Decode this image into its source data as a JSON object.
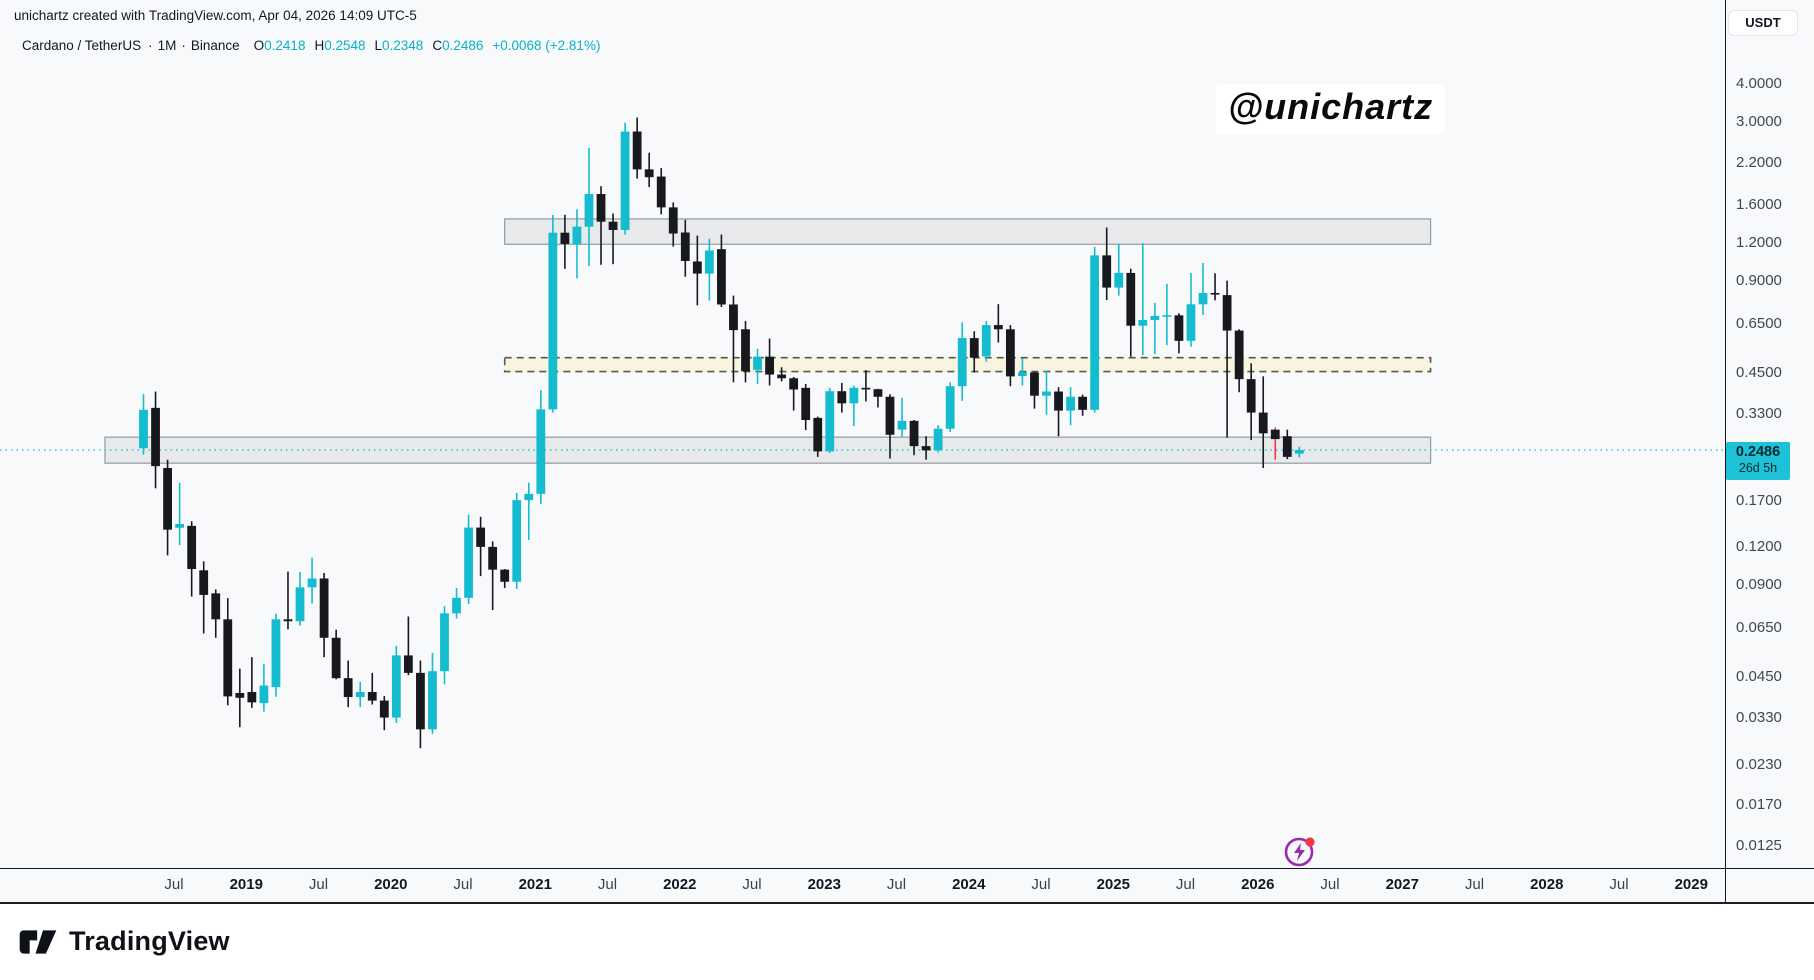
{
  "header": {
    "credit_line": "unichartz created with TradingView.com, Apr 04, 2026 14:09 UTC-5",
    "symbol": "Cardano / TetherUS",
    "separator": "·",
    "interval": "1M",
    "exchange": "Binance",
    "ohlc": {
      "o_label": "O",
      "o": "0.2418",
      "h_label": "H",
      "h": "0.2548",
      "l_label": "L",
      "l": "0.2348",
      "c_label": "C",
      "c": "0.2486",
      "change": "+0.0068 (+2.81%)"
    }
  },
  "watermark": "@unichartz",
  "price_axis": {
    "currency_button": "USDT",
    "ticks": [
      "4.0000",
      "3.0000",
      "2.2000",
      "1.6000",
      "1.2000",
      "0.9000",
      "0.6500",
      "0.4500",
      "0.3300",
      "0.1700",
      "0.1200",
      "0.0900",
      "0.0650",
      "0.0450",
      "0.0330",
      "0.0230",
      "0.0170",
      "0.0125"
    ],
    "last_price": "0.2486",
    "countdown": "26d 5h"
  },
  "time_axis": {
    "labels": [
      "Jul",
      "2019",
      "Jul",
      "2020",
      "Jul",
      "2021",
      "Jul",
      "2022",
      "Jul",
      "2023",
      "Jul",
      "2024",
      "Jul",
      "2025",
      "Jul",
      "2026",
      "Jul",
      "2027",
      "Jul",
      "2028",
      "Jul",
      "2029"
    ]
  },
  "footer": {
    "brand": "TradingView"
  },
  "colors": {
    "up": "#15bccf",
    "down": "#17191e",
    "accent_cyan": "#09b2c8",
    "badge_bg": "#1ec2d6",
    "badge_text": "#0c2b31",
    "zone_gray_fill": "rgba(145,150,157,0.16)",
    "zone_gray_border": "#9599a2",
    "zone_yellow_fill": "rgba(248,241,207,0.62)",
    "zone_yellow_border": "#55584e",
    "price_line": "#27c9dd",
    "purple": "#9c27b0",
    "red": "#f23645"
  },
  "chart_data": {
    "type": "candlestick",
    "title": "Cardano / TetherUS · 1M · Binance",
    "scale": "log",
    "interval": "monthly",
    "current_price": 0.2486,
    "ylim_ticks": [
      4.0,
      0.0125
    ],
    "zones": [
      {
        "name": "resistance-zone",
        "style": "solid",
        "price_top": 1.43,
        "price_bottom": 1.18,
        "start_index": 30,
        "end_index": 106.9
      },
      {
        "name": "mid-range-zone",
        "style": "dashed",
        "price_top": 0.5,
        "price_bottom": 0.45,
        "start_index": 30,
        "end_index": 106.9
      },
      {
        "name": "support-zone",
        "style": "solid",
        "price_top": 0.274,
        "price_bottom": 0.225,
        "start_index": -3.2,
        "end_index": 106.9
      }
    ],
    "candles": [
      [
        "2018-04",
        0.252,
        0.38,
        0.24,
        0.337
      ],
      [
        "2018-05",
        0.342,
        0.387,
        0.186,
        0.22
      ],
      [
        "2018-06",
        0.217,
        0.231,
        0.112,
        0.136
      ],
      [
        "2018-07",
        0.138,
        0.194,
        0.121,
        0.142
      ],
      [
        "2018-08",
        0.14,
        0.145,
        0.082,
        0.101
      ],
      [
        "2018-09",
        0.1,
        0.107,
        0.062,
        0.083
      ],
      [
        "2018-10",
        0.084,
        0.0865,
        0.06,
        0.069
      ],
      [
        "2018-11",
        0.069,
        0.081,
        0.036,
        0.0385
      ],
      [
        "2018-12",
        0.0395,
        0.0475,
        0.0305,
        0.0381
      ],
      [
        "2019-01",
        0.0398,
        0.0518,
        0.0353,
        0.0368
      ],
      [
        "2019-02",
        0.0366,
        0.0493,
        0.0343,
        0.0418
      ],
      [
        "2019-03",
        0.0413,
        0.072,
        0.0384,
        0.069
      ],
      [
        "2019-04",
        0.069,
        0.099,
        0.064,
        0.068
      ],
      [
        "2019-05",
        0.068,
        0.0988,
        0.0658,
        0.0879
      ],
      [
        "2019-06",
        0.0879,
        0.11,
        0.0778,
        0.094
      ],
      [
        "2019-07",
        0.094,
        0.098,
        0.0518,
        0.06
      ],
      [
        "2019-08",
        0.06,
        0.0638,
        0.0438,
        0.0442
      ],
      [
        "2019-09",
        0.0442,
        0.0505,
        0.0355,
        0.0383
      ],
      [
        "2019-10",
        0.0383,
        0.043,
        0.0355,
        0.0398
      ],
      [
        "2019-11",
        0.0398,
        0.046,
        0.0362,
        0.0373
      ],
      [
        "2019-12",
        0.0373,
        0.0386,
        0.0298,
        0.0328
      ],
      [
        "2020-01",
        0.0328,
        0.0565,
        0.0315,
        0.0525
      ],
      [
        "2020-02",
        0.0525,
        0.0705,
        0.0452,
        0.046
      ],
      [
        "2020-03",
        0.046,
        0.0505,
        0.026,
        0.03
      ],
      [
        "2020-04",
        0.03,
        0.0535,
        0.029,
        0.0466
      ],
      [
        "2020-05",
        0.0466,
        0.0762,
        0.0422,
        0.0722
      ],
      [
        "2020-06",
        0.0722,
        0.0875,
        0.0694,
        0.0812
      ],
      [
        "2020-07",
        0.0812,
        0.1525,
        0.0775,
        0.1382
      ],
      [
        "2020-08",
        0.1382,
        0.1499,
        0.0957,
        0.1194
      ],
      [
        "2020-09",
        0.1194,
        0.1245,
        0.074,
        0.1005
      ],
      [
        "2020-10",
        0.1005,
        0.101,
        0.0875,
        0.0917
      ],
      [
        "2020-11",
        0.0917,
        0.1797,
        0.0869,
        0.1701
      ],
      [
        "2020-12",
        0.1701,
        0.1941,
        0.1259,
        0.1784
      ],
      [
        "2021-01",
        0.1784,
        0.391,
        0.165,
        0.338
      ],
      [
        "2021-02",
        0.338,
        1.472,
        0.33,
        1.288
      ],
      [
        "2021-03",
        1.288,
        1.475,
        0.98,
        1.183
      ],
      [
        "2021-04",
        1.183,
        1.537,
        0.912,
        1.348
      ],
      [
        "2021-05",
        1.348,
        2.45,
        1.0,
        1.726
      ],
      [
        "2021-06",
        1.726,
        1.832,
        1.01,
        1.4
      ],
      [
        "2021-07",
        1.4,
        1.489,
        1.015,
        1.315
      ],
      [
        "2021-08",
        1.315,
        2.96,
        1.27,
        2.77
      ],
      [
        "2021-09",
        2.77,
        3.08,
        1.94,
        2.08
      ],
      [
        "2021-10",
        2.08,
        2.36,
        1.82,
        1.96
      ],
      [
        "2021-11",
        1.97,
        2.1,
        1.48,
        1.56
      ],
      [
        "2021-12",
        1.56,
        1.62,
        1.16,
        1.28
      ],
      [
        "2022-01",
        1.29,
        1.42,
        0.923,
        1.04
      ],
      [
        "2022-02",
        1.036,
        1.26,
        0.743,
        0.945
      ],
      [
        "2022-03",
        0.945,
        1.23,
        0.771,
        1.126
      ],
      [
        "2022-04",
        1.137,
        1.27,
        0.734,
        0.748
      ],
      [
        "2022-05",
        0.748,
        0.8,
        0.415,
        0.616
      ],
      [
        "2022-06",
        0.62,
        0.66,
        0.415,
        0.451
      ],
      [
        "2022-07",
        0.456,
        0.535,
        0.41,
        0.504
      ],
      [
        "2022-08",
        0.504,
        0.578,
        0.405,
        0.44
      ],
      [
        "2022-09",
        0.44,
        0.465,
        0.418,
        0.428
      ],
      [
        "2022-10",
        0.428,
        0.432,
        0.335,
        0.393
      ],
      [
        "2022-11",
        0.398,
        0.41,
        0.289,
        0.312
      ],
      [
        "2022-12",
        0.317,
        0.32,
        0.236,
        0.246
      ],
      [
        "2023-01",
        0.246,
        0.398,
        0.243,
        0.388
      ],
      [
        "2023-02",
        0.388,
        0.413,
        0.33,
        0.354
      ],
      [
        "2023-03",
        0.354,
        0.405,
        0.298,
        0.398
      ],
      [
        "2023-04",
        0.398,
        0.455,
        0.359,
        0.395
      ],
      [
        "2023-05",
        0.394,
        0.395,
        0.343,
        0.372
      ],
      [
        "2023-06",
        0.372,
        0.379,
        0.233,
        0.279
      ],
      [
        "2023-07",
        0.29,
        0.369,
        0.275,
        0.31
      ],
      [
        "2023-08",
        0.31,
        0.312,
        0.239,
        0.256
      ],
      [
        "2023-09",
        0.256,
        0.276,
        0.231,
        0.248
      ],
      [
        "2023-10",
        0.248,
        0.3,
        0.244,
        0.292
      ],
      [
        "2023-11",
        0.292,
        0.415,
        0.285,
        0.403
      ],
      [
        "2023-12",
        0.403,
        0.653,
        0.361,
        0.58
      ],
      [
        "2024-01",
        0.58,
        0.611,
        0.447,
        0.5
      ],
      [
        "2024-02",
        0.505,
        0.66,
        0.485,
        0.64
      ],
      [
        "2024-03",
        0.64,
        0.75,
        0.561,
        0.62
      ],
      [
        "2024-04",
        0.62,
        0.64,
        0.403,
        0.434
      ],
      [
        "2024-05",
        0.435,
        0.497,
        0.405,
        0.447
      ],
      [
        "2024-06",
        0.447,
        0.45,
        0.34,
        0.375
      ],
      [
        "2024-07",
        0.375,
        0.452,
        0.325,
        0.387
      ],
      [
        "2024-08",
        0.387,
        0.4,
        0.276,
        0.335
      ],
      [
        "2024-09",
        0.335,
        0.4,
        0.3,
        0.372
      ],
      [
        "2024-10",
        0.372,
        0.378,
        0.322,
        0.337
      ],
      [
        "2024-11",
        0.337,
        1.157,
        0.33,
        1.085
      ],
      [
        "2024-12",
        1.085,
        1.34,
        0.774,
        0.85
      ],
      [
        "2025-01",
        0.85,
        1.186,
        0.8,
        0.95
      ],
      [
        "2025-02",
        0.95,
        0.98,
        0.504,
        0.637
      ],
      [
        "2025-03",
        0.637,
        1.19,
        0.51,
        0.665
      ],
      [
        "2025-04",
        0.665,
        0.757,
        0.514,
        0.686
      ],
      [
        "2025-05",
        0.686,
        0.875,
        0.55,
        0.69
      ],
      [
        "2025-06",
        0.689,
        0.7,
        0.517,
        0.568
      ],
      [
        "2025-07",
        0.568,
        0.95,
        0.543,
        0.749
      ],
      [
        "2025-08",
        0.749,
        1.024,
        0.691,
        0.816
      ],
      [
        "2025-09",
        0.816,
        0.947,
        0.772,
        0.81
      ],
      [
        "2025-10",
        0.803,
        0.896,
        0.273,
        0.614
      ],
      [
        "2025-11",
        0.614,
        0.62,
        0.385,
        0.425
      ],
      [
        "2025-12",
        0.425,
        0.479,
        0.268,
        0.33
      ],
      [
        "2026-01",
        0.33,
        0.434,
        0.217,
        0.282
      ],
      [
        "2026-02",
        0.29,
        0.295,
        0.231,
        0.27,
        "red_wick"
      ],
      [
        "2026-03",
        0.276,
        0.29,
        0.232,
        0.236
      ],
      [
        "2026-04",
        0.2418,
        0.2548,
        0.2348,
        0.2486
      ]
    ]
  }
}
